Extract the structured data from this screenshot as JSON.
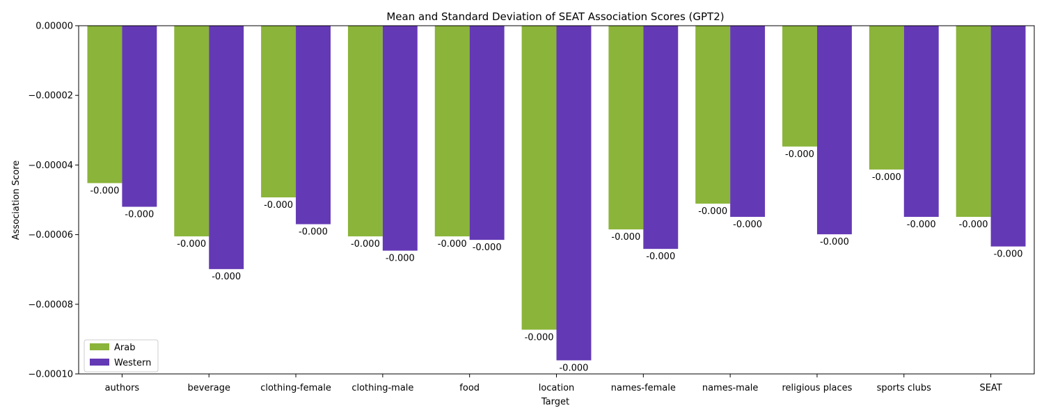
{
  "chart_data": {
    "type": "bar",
    "title": "Mean and Standard Deviation of SEAT Association Scores (GPT2)",
    "xlabel": "Target",
    "ylabel": "Association Score",
    "ylim": [
      -0.0001,
      0.0
    ],
    "yticks": [
      0.0,
      -2e-05,
      -4e-05,
      -6e-05,
      -8e-05,
      -0.0001
    ],
    "ytick_labels": [
      "0.00000",
      "−0.00002",
      "−0.00004",
      "−0.00006",
      "−0.00008",
      "−0.00010"
    ],
    "categories": [
      "authors",
      "beverage",
      "clothing-female",
      "clothing-male",
      "food",
      "location",
      "names-female",
      "names-male",
      "religious places",
      "sports clubs",
      "SEAT"
    ],
    "series": [
      {
        "name": "Arab",
        "color": "#8BB43A",
        "values": [
          -4.52e-05,
          -6.05e-05,
          -4.93e-05,
          -6.05e-05,
          -6.05e-05,
          -8.73e-05,
          -5.85e-05,
          -5.11e-05,
          -3.47e-05,
          -4.13e-05,
          -5.49e-05
        ],
        "labels": [
          "-0.000",
          "-0.000",
          "-0.000",
          "-0.000",
          "-0.000",
          "-0.000",
          "-0.000",
          "-0.000",
          "-0.000",
          "-0.000",
          "-0.000"
        ]
      },
      {
        "name": "Western",
        "color": "#6439B5",
        "values": [
          -5.2e-05,
          -6.99e-05,
          -5.7e-05,
          -6.46e-05,
          -6.15e-05,
          -9.61e-05,
          -6.41e-05,
          -5.49e-05,
          -5.99e-05,
          -5.49e-05,
          -6.34e-05
        ],
        "labels": [
          "-0.000",
          "-0.000",
          "-0.000",
          "-0.000",
          "-0.000",
          "-0.000",
          "-0.000",
          "-0.000",
          "-0.000",
          "-0.000",
          "-0.000"
        ]
      }
    ],
    "legend_position": "lower-left",
    "grid": false
  }
}
